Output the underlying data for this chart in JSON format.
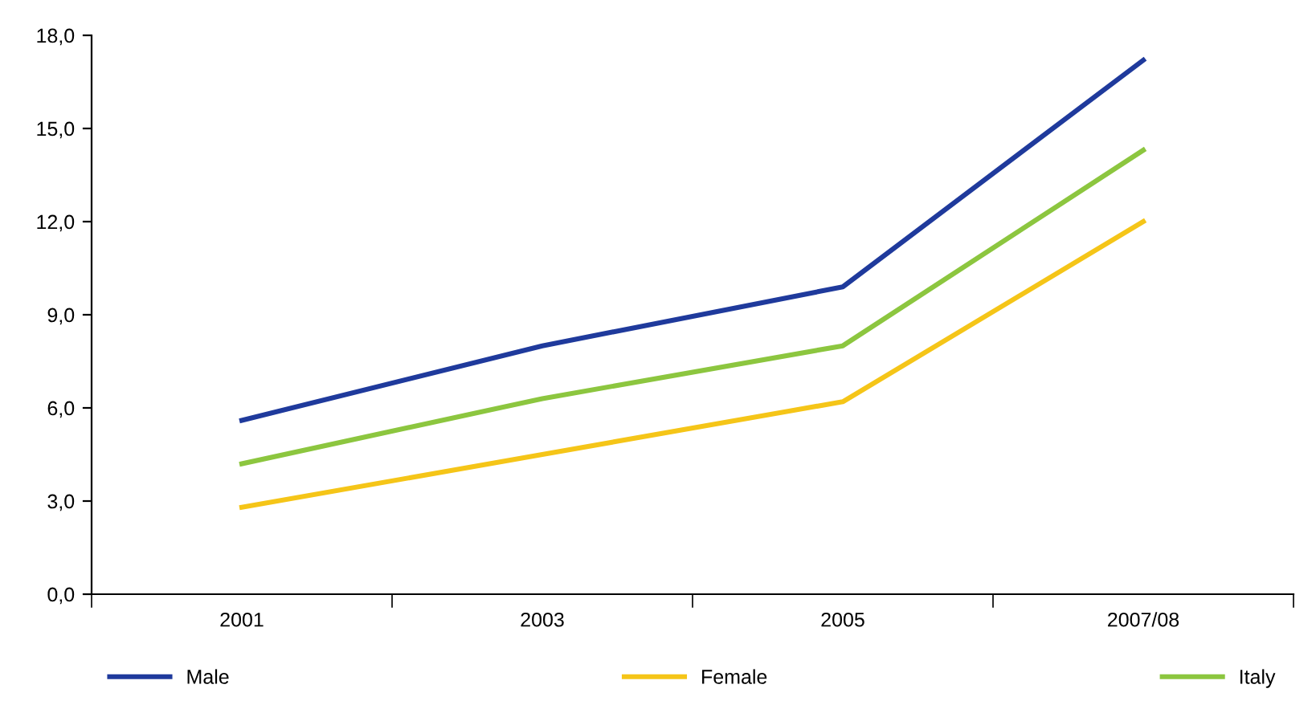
{
  "chart_data": {
    "type": "line",
    "categories": [
      "2001",
      "2003",
      "2005",
      "2007/08"
    ],
    "series": [
      {
        "name": "Male",
        "color": "#1f3a9c",
        "values": [
          5.6,
          8.0,
          9.9,
          17.2
        ]
      },
      {
        "name": "Female",
        "color": "#f5c518",
        "values": [
          2.8,
          4.5,
          6.2,
          12.0
        ]
      },
      {
        "name": "Italy",
        "color": "#8cc63f",
        "values": [
          4.2,
          6.3,
          8.0,
          14.3
        ]
      }
    ],
    "ylim": [
      0,
      18
    ],
    "yticks": [
      {
        "value": 0,
        "label": "0,0"
      },
      {
        "value": 3,
        "label": "3,0"
      },
      {
        "value": 6,
        "label": "6,0"
      },
      {
        "value": 9,
        "label": "9,0"
      },
      {
        "value": 12,
        "label": "12,0"
      },
      {
        "value": 15,
        "label": "15,0"
      },
      {
        "value": 18,
        "label": "18,0"
      }
    ],
    "grid": false,
    "legend": "bottom",
    "marker": "none",
    "line_style": "solid"
  }
}
